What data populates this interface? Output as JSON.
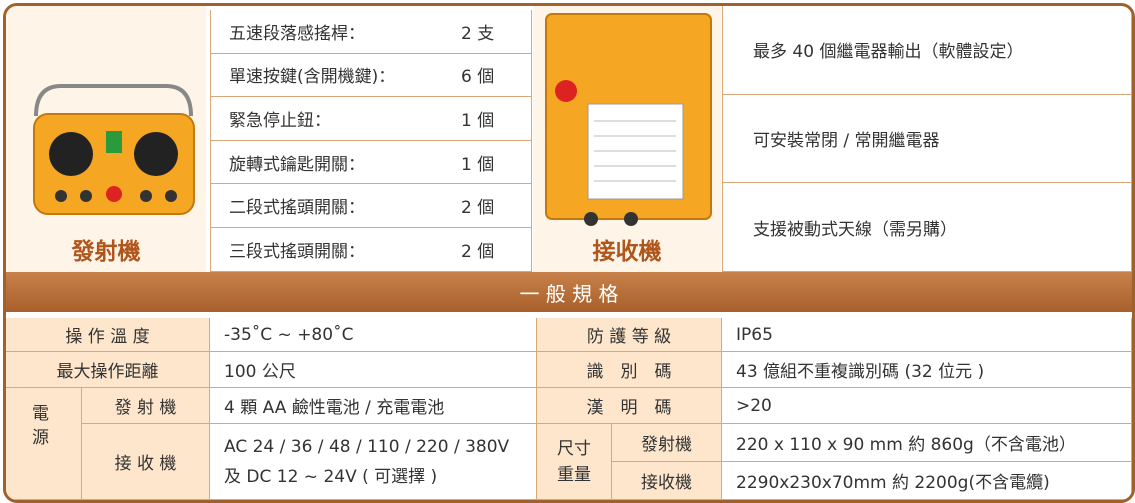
{
  "transmitter": {
    "label": "發射機",
    "specs": [
      [
        "五速段落感搖桿：",
        "2 支"
      ],
      [
        "單速按鍵(含開機鍵)：",
        "6 個"
      ],
      [
        "緊急停止鈕：",
        "1 個"
      ],
      [
        "旋轉式鑰匙開關：",
        "1 個"
      ],
      [
        "二段式搖頭開關：",
        "2 個"
      ],
      [
        "三段式搖頭開關：",
        "2 個"
      ]
    ]
  },
  "receiver": {
    "label": "接收機",
    "features": [
      "最多 40 個繼電器輸出（軟體設定）",
      "可安裝常閉 / 常開繼電器",
      "支援被動式天線（需另購）"
    ]
  },
  "section_title": "一 般 規 格",
  "specs": {
    "rows": [
      [
        "操 作 溫 度",
        "-35˚C ~ +80˚C",
        "防 護 等 級",
        "IP65"
      ],
      [
        "最大操作距離",
        "100 公尺",
        "識　別　碼",
        "43 億組不重複識別碼 (32 位元 )"
      ]
    ],
    "power": {
      "label": "電源",
      "transmitter": [
        "發 射 機",
        "4 顆 AA 鹼性電池 / 充電電池"
      ],
      "receiver": [
        "接 收 機",
        "AC 24 / 36 / 48 / 110 / 220 / 380V",
        "及 DC 12 ~ 24V ( 可選擇 )"
      ]
    },
    "hamming": [
      "漢　明　碼",
      ">20"
    ],
    "size": {
      "label": "尺寸重量",
      "transmitter": [
        "發射機",
        "220 x 110 x 90 mm 約 860g（不含電池）"
      ],
      "receiver": [
        "接收機",
        "2290x230x70mm 約 2200g(不含電纜)"
      ]
    }
  }
}
